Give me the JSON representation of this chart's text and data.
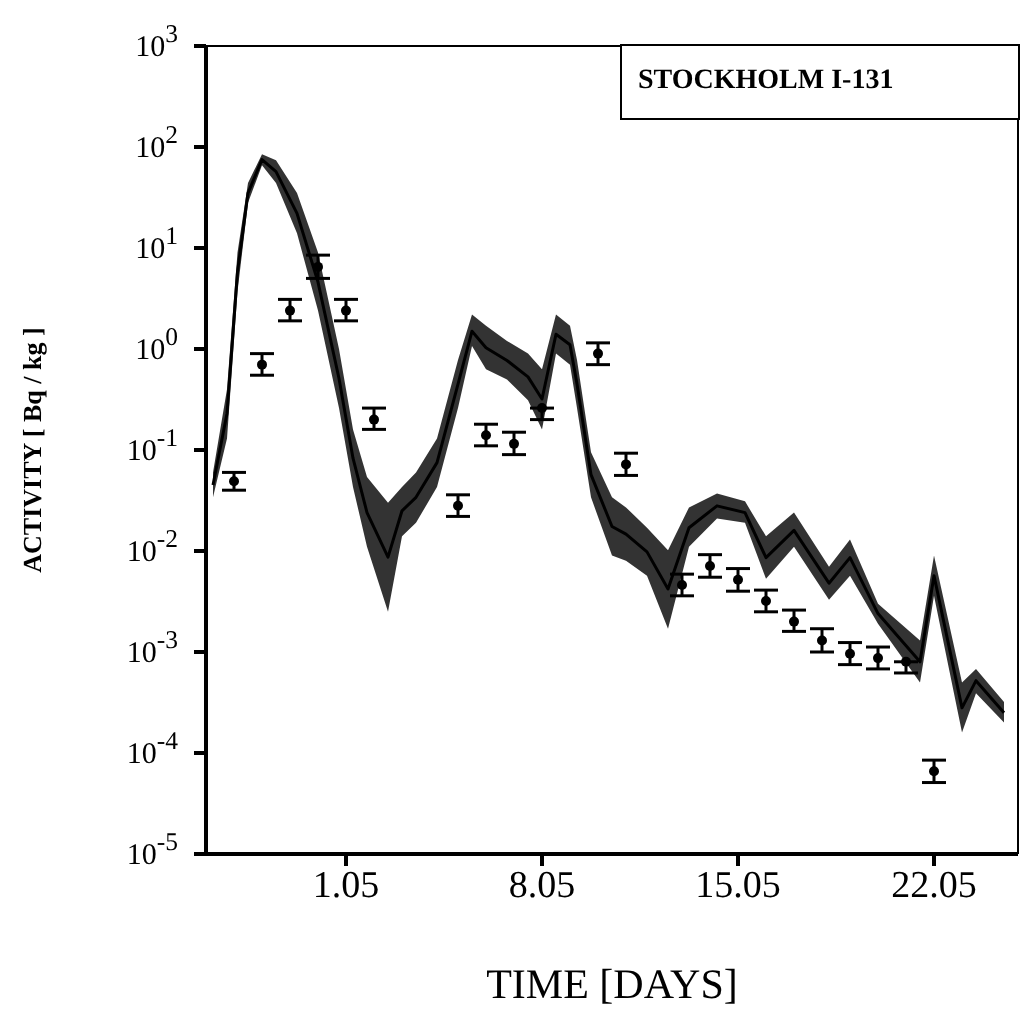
{
  "chart_data": {
    "type": "line",
    "xlabel": "TIME  [DAYS]",
    "ylabel": "ACTIVITY  [ Bq / kg ]",
    "annotations": [
      "STOCKHOLM  I-131"
    ],
    "log": "y",
    "grid": false,
    "legend": false,
    "marker": "circle",
    "xlim": [
      "--04-26",
      "--05-25"
    ],
    "xticks": [
      {
        "value": "--05-01",
        "label": "1.05"
      },
      {
        "value": "--05-08",
        "label": "8.05"
      },
      {
        "value": "--05-15",
        "label": "15.05"
      },
      {
        "value": "--05-22",
        "label": "22.05"
      }
    ],
    "ylim": [
      1e-05,
      1000
    ],
    "yticks": [
      {
        "value": 1e-05,
        "label": "10$^{-5}$"
      },
      {
        "value": 0.0001,
        "label": "10$^{-4}$"
      },
      {
        "value": 0.001,
        "label": "10$^{-3}$"
      },
      {
        "value": 0.01,
        "label": "10$^{-2}$"
      },
      {
        "value": 0.1,
        "label": "10$^{-1}$"
      },
      {
        "value": 1,
        "label": "10$^{0}$"
      },
      {
        "value": 10,
        "label": "10$^{1}$"
      },
      {
        "value": 100,
        "label": "10$^{2}$"
      },
      {
        "value": 1000,
        "label": "10$^{3}$"
      }
    ],
    "series": [
      {
        "marker": "none",
        "color": "#000000",
        "values": [
          0.045,
          0.23,
          5.8,
          35,
          75,
          57,
          22,
          4.6,
          0.51,
          0.083,
          0.024,
          0.0087,
          0.025,
          0.034,
          0.075,
          0.45,
          1.5,
          1.03,
          0.77,
          0.53,
          0.32,
          1.4,
          1.1,
          0.45,
          0.057,
          0.0175,
          0.0147,
          0.0098,
          0.0042,
          0.017,
          0.028,
          0.024,
          0.0086,
          0.016,
          0.0048,
          0.0086,
          0.0024,
          0.0008,
          0.0057,
          0.00028,
          0.00052,
          0.00025
        ],
        "x": [
          "--04-26T06:00",
          "--04-26T18:00",
          "--04-27T03:00",
          "--04-27T12:00",
          "--04-28T00:00",
          "--04-28T12:00",
          "--04-29T06:00",
          "--04-30T00:00",
          "--04-30T18:00",
          "--05-01T06:00",
          "--05-01T18:00",
          "--05-02T12:00",
          "--05-03T00:00",
          "--05-03T12:00",
          "--05-04T06:00",
          "--05-05T00:00",
          "--05-05T12:00",
          "--05-06T00:00",
          "--05-06T18:00",
          "--05-07T12:00",
          "--05-08T00:00",
          "--05-08T12:00",
          "--05-09T00:00",
          "--05-09T06:00",
          "--05-09T18:00",
          "--05-10T12:00",
          "--05-11T00:00",
          "--05-11T18:00",
          "--05-12T12:00",
          "--05-13T06:00",
          "--05-14T06:00",
          "--05-15T06:00",
          "--05-16T00:00",
          "--05-17T00:00",
          "--05-18T06:00",
          "--05-19T00:00",
          "--05-20T00:00",
          "--05-21T12:00",
          "--05-22T00:00",
          "--05-23T00:00",
          "--05-23T12:00",
          "--05-24T12:00"
        ],
        "lower": [
          0.034,
          0.13,
          3.7,
          28,
          66,
          44,
          14,
          2.4,
          0.26,
          0.043,
          0.011,
          0.0025,
          0.014,
          0.019,
          0.043,
          0.26,
          1.07,
          0.63,
          0.5,
          0.31,
          0.16,
          0.9,
          0.7,
          0.26,
          0.034,
          0.009,
          0.008,
          0.0057,
          0.0017,
          0.011,
          0.021,
          0.019,
          0.0053,
          0.011,
          0.0033,
          0.0057,
          0.0019,
          0.0005,
          0.0036,
          0.00016,
          0.00039,
          0.0002
        ],
        "upper": [
          0.06,
          0.4,
          9,
          44,
          85,
          74,
          35,
          9,
          1,
          0.16,
          0.054,
          0.03,
          0.043,
          0.06,
          0.13,
          0.78,
          2.2,
          1.7,
          1.2,
          0.9,
          0.63,
          2.2,
          1.7,
          0.78,
          0.095,
          0.034,
          0.027,
          0.017,
          0.0102,
          0.027,
          0.037,
          0.031,
          0.014,
          0.024,
          0.007,
          0.013,
          0.003,
          0.0013,
          0.009,
          0.0005,
          0.00068,
          0.00032
        ]
      },
      {
        "type": "scatter",
        "color": "#000000",
        "x": [
          "--04-27",
          "--04-28",
          "--04-29",
          "--04-30",
          "--05-01",
          "--05-02",
          "--05-05",
          "--05-06",
          "--05-07",
          "--05-08",
          "--05-10",
          "--05-11",
          "--05-13",
          "--05-14",
          "--05-15",
          "--05-16",
          "--05-17",
          "--05-18",
          "--05-19",
          "--05-20",
          "--05-21",
          "--05-22"
        ],
        "values": [
          0.049,
          0.7,
          2.4,
          6.5,
          2.4,
          0.2,
          0.028,
          0.14,
          0.115,
          0.26,
          0.9,
          0.072,
          0.0046,
          0.0071,
          0.0052,
          0.0032,
          0.002,
          0.0013,
          0.00096,
          0.00087,
          0.0008,
          6.6e-05
        ],
        "errors": [
          [
            0.04,
            0.06
          ],
          [
            0.55,
            0.9
          ],
          [
            1.9,
            3.1
          ],
          [
            5,
            8.5
          ],
          [
            1.9,
            3.1
          ],
          [
            0.16,
            0.26
          ],
          [
            0.022,
            0.036
          ],
          [
            0.11,
            0.18
          ],
          [
            0.09,
            0.15
          ],
          [
            0.2,
            0.26
          ],
          [
            0.7,
            1.15
          ],
          [
            0.056,
            0.093
          ],
          [
            0.0036,
            0.0059
          ],
          [
            0.0055,
            0.0092
          ],
          [
            0.004,
            0.0067
          ],
          [
            0.0025,
            0.0041
          ],
          [
            0.0016,
            0.0026
          ],
          [
            0.001,
            0.0017
          ],
          [
            0.00075,
            0.00124
          ],
          [
            0.00068,
            0.00112
          ],
          [
            0.00062,
            0.0008
          ],
          [
            5.1e-05,
            8.5e-05
          ]
        ]
      }
    ]
  }
}
